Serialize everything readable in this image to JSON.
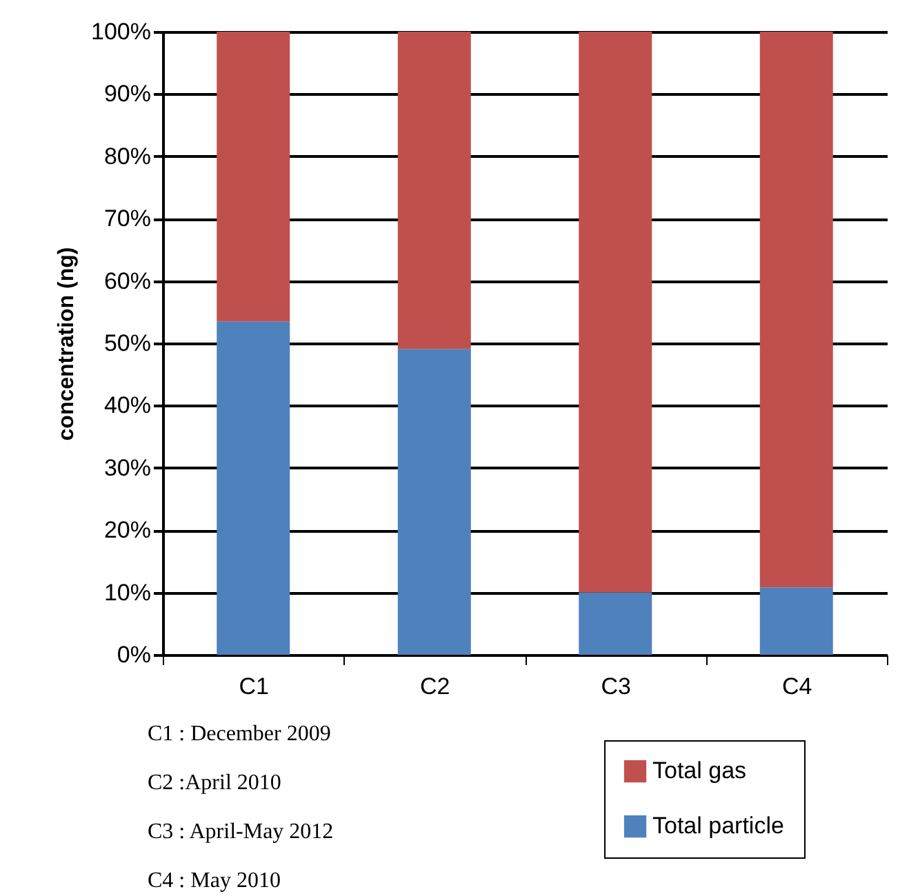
{
  "chart_data": {
    "type": "bar",
    "stacked": true,
    "ylabel": "concentration (ng)",
    "categories": [
      "C1",
      "C2",
      "C3",
      "C4"
    ],
    "series": [
      {
        "name": "Total particle",
        "color": "#4f81bd",
        "values": [
          53.5,
          49.1,
          10.0,
          10.8
        ]
      },
      {
        "name": "Total gas",
        "color": "#c0504d",
        "values": [
          46.5,
          50.9,
          90.0,
          89.2
        ]
      }
    ],
    "ylim": [
      0,
      100
    ],
    "yticks": [
      {
        "value": 0,
        "label": "0%"
      },
      {
        "value": 10,
        "label": "10%"
      },
      {
        "value": 20,
        "label": "20%"
      },
      {
        "value": 30,
        "label": "30%"
      },
      {
        "value": 40,
        "label": "40%"
      },
      {
        "value": 50,
        "label": "50%"
      },
      {
        "value": 60,
        "label": "60%"
      },
      {
        "value": 70,
        "label": "70%"
      },
      {
        "value": 80,
        "label": "80%"
      },
      {
        "value": 90,
        "label": "90%"
      },
      {
        "value": 100,
        "label": "100%"
      }
    ],
    "grid": "y",
    "legend": "bottom right",
    "annotations": [
      "C1 : December 2009",
      "C2 :April 2010",
      "C3 : April-May 2012",
      "C4 : May 2010"
    ]
  }
}
